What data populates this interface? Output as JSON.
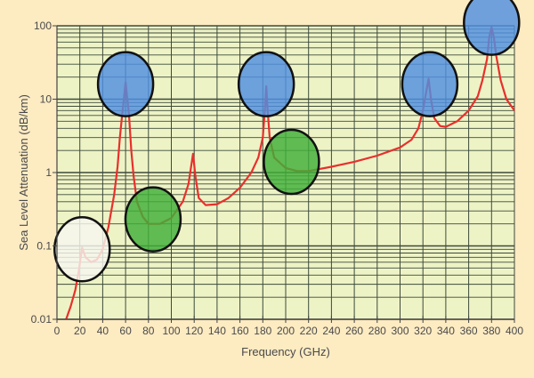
{
  "chart_data": {
    "type": "line",
    "xlabel": "Frequency (GHz)",
    "ylabel": "Sea Level Attenuation (dB/km)",
    "xlim": [
      0,
      400
    ],
    "ylim": [
      0.01,
      100
    ],
    "yscale": "log",
    "grid": true,
    "x_ticks": [
      "0",
      "20",
      "40",
      "60",
      "80",
      "100",
      "120",
      "140",
      "160",
      "180",
      "200",
      "220",
      "240",
      "260",
      "280",
      "300",
      "320",
      "340",
      "360",
      "380",
      "400"
    ],
    "y_ticks": [
      "0.01",
      "0.1",
      "1",
      "10",
      "100"
    ],
    "series": [
      {
        "color": "#e8302c",
        "x": [
          8,
          12,
          16,
          19,
          22,
          25,
          30,
          35,
          40,
          45,
          50,
          53,
          55,
          57,
          59,
          60,
          61,
          63,
          65,
          67,
          70,
          75,
          80,
          90,
          100,
          110,
          115,
          119,
          121,
          124,
          130,
          140,
          150,
          160,
          170,
          176,
          180,
          182,
          183,
          184,
          186,
          190,
          200,
          210,
          220,
          240,
          260,
          280,
          300,
          310,
          316,
          320,
          323,
          325,
          327,
          330,
          335,
          340,
          350,
          360,
          368,
          372,
          376,
          378,
          380,
          382,
          384,
          388,
          393,
          400
        ],
        "y": [
          0.01,
          0.015,
          0.025,
          0.045,
          0.095,
          0.07,
          0.06,
          0.065,
          0.09,
          0.18,
          0.5,
          1.2,
          3,
          6,
          12,
          17,
          12,
          6,
          2,
          0.9,
          0.4,
          0.25,
          0.2,
          0.2,
          0.24,
          0.4,
          0.7,
          1.8,
          0.9,
          0.45,
          0.36,
          0.37,
          0.45,
          0.62,
          1.0,
          1.6,
          3,
          8,
          15,
          8,
          3,
          1.6,
          1.15,
          1.05,
          1.05,
          1.2,
          1.4,
          1.7,
          2.2,
          2.8,
          4,
          7,
          13,
          19,
          10,
          5.5,
          4.3,
          4.2,
          5,
          7,
          11,
          18,
          35,
          70,
          95,
          70,
          40,
          18,
          10,
          7
        ]
      }
    ],
    "annotations": [
      {
        "shape": "circle",
        "color": "#f7f7ef",
        "x": 22,
        "y": 0.09
      },
      {
        "shape": "circle",
        "color": "#4f8fe0",
        "x": 60,
        "y": 16
      },
      {
        "shape": "circle",
        "color": "#3fae38",
        "x": 84,
        "y": 0.23
      },
      {
        "shape": "circle",
        "color": "#4f8fe0",
        "x": 183,
        "y": 16
      },
      {
        "shape": "circle",
        "color": "#3fae38",
        "x": 205,
        "y": 1.4
      },
      {
        "shape": "circle",
        "color": "#4f8fe0",
        "x": 326,
        "y": 16
      },
      {
        "shape": "circle",
        "color": "#4f8fe0",
        "x": 380,
        "y": 110
      }
    ],
    "colors": {
      "background": "#fdebc2",
      "plot_area": "#eef3c6",
      "grid": "#3d4a3a",
      "axis_text": "#4a4a4a"
    }
  }
}
